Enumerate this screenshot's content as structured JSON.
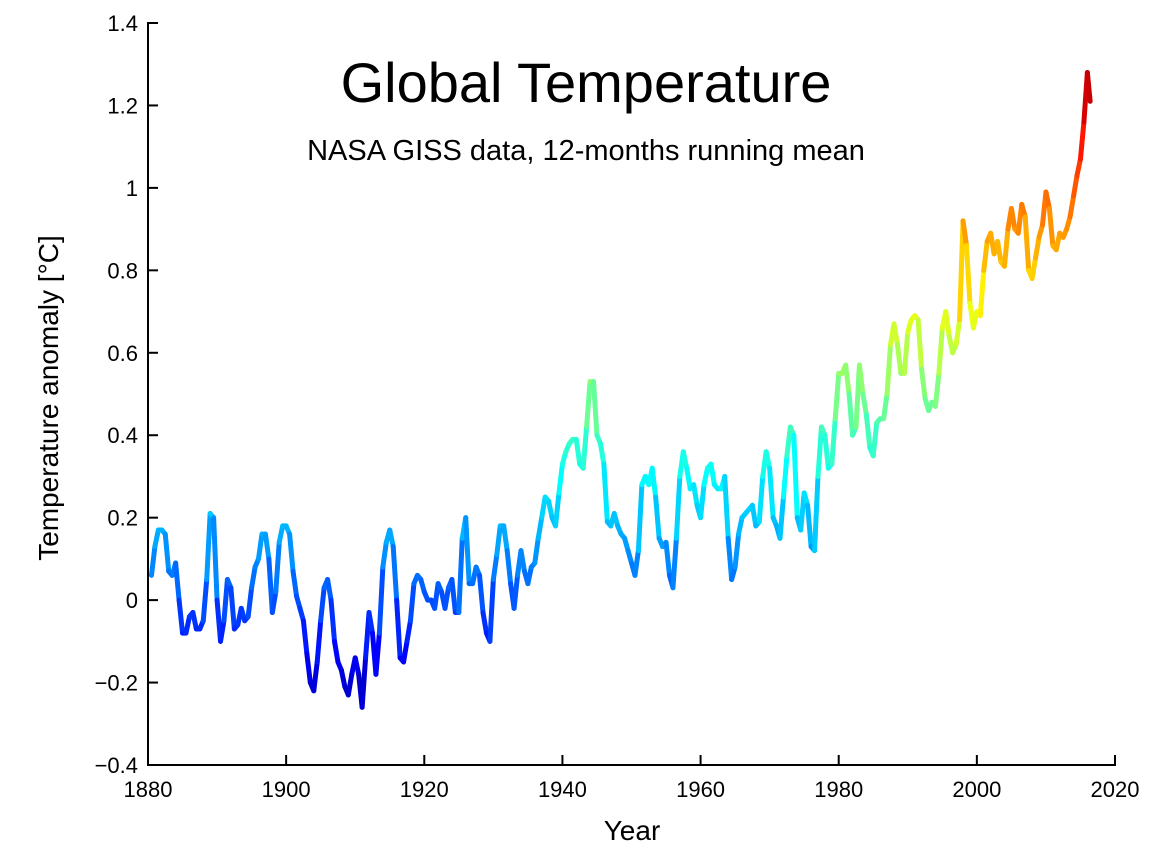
{
  "chart_data": {
    "type": "line",
    "title": "Global Temperature",
    "subtitle": "NASA GISS data, 12-months running mean",
    "xlabel": "Year",
    "ylabel": "Temperature anomaly [°C]",
    "xlim": [
      1880,
      2020
    ],
    "ylim": [
      -0.4,
      1.4
    ],
    "xticks": [
      1880,
      1900,
      1920,
      1940,
      1960,
      1980,
      2000,
      2020
    ],
    "xtick_labels": [
      "1880",
      "1900",
      "1920",
      "1940",
      "1960",
      "1980",
      "2000",
      "2020"
    ],
    "yticks": [
      1.4,
      1.2,
      1,
      0.8,
      0.6,
      0.4,
      0.2,
      0,
      -0.2,
      -0.4
    ],
    "ytick_labels": [
      "1.4",
      "1.2",
      "1",
      "0.8",
      "0.6",
      "0.4",
      "0.2",
      "0",
      "−0.2",
      "−0.4"
    ],
    "grid": false,
    "colormap": "jet (colored by anomaly value)",
    "series": [
      {
        "name": "12-month running mean anomaly",
        "x": [
          1880.5,
          1881,
          1881.5,
          1882,
          1882.5,
          1883,
          1883.5,
          1884,
          1884.5,
          1885,
          1885.5,
          1886,
          1886.5,
          1887,
          1887.5,
          1888,
          1888.5,
          1889,
          1889.5,
          1890,
          1890.5,
          1891,
          1891.5,
          1892,
          1892.5,
          1893,
          1893.5,
          1894,
          1894.5,
          1895,
          1895.5,
          1896,
          1896.5,
          1897,
          1897.5,
          1898,
          1898.5,
          1899,
          1899.5,
          1900,
          1900.5,
          1901,
          1901.5,
          1902,
          1902.5,
          1903,
          1903.5,
          1904,
          1904.5,
          1905,
          1905.5,
          1906,
          1906.5,
          1907,
          1907.5,
          1908,
          1908.5,
          1909,
          1909.5,
          1910,
          1910.5,
          1911,
          1911.5,
          1912,
          1912.5,
          1913,
          1913.5,
          1914,
          1914.5,
          1915,
          1915.5,
          1916,
          1916.5,
          1917,
          1917.5,
          1918,
          1918.5,
          1919,
          1919.5,
          1920,
          1920.5,
          1921,
          1921.5,
          1922,
          1922.5,
          1923,
          1923.5,
          1924,
          1924.5,
          1925,
          1925.5,
          1926,
          1926.5,
          1927,
          1927.5,
          1928,
          1928.5,
          1929,
          1929.5,
          1930,
          1930.5,
          1931,
          1931.5,
          1932,
          1932.5,
          1933,
          1933.5,
          1934,
          1934.5,
          1935,
          1935.5,
          1936,
          1936.5,
          1937,
          1937.5,
          1938,
          1938.5,
          1939,
          1939.5,
          1940,
          1940.5,
          1941,
          1941.5,
          1942,
          1942.5,
          1943,
          1943.5,
          1944,
          1944.5,
          1945,
          1945.5,
          1946,
          1946.5,
          1947,
          1947.5,
          1948,
          1948.5,
          1949,
          1949.5,
          1950,
          1950.5,
          1951,
          1951.5,
          1952,
          1952.5,
          1953,
          1953.5,
          1954,
          1954.5,
          1955,
          1955.5,
          1956,
          1956.5,
          1957,
          1957.5,
          1958,
          1958.5,
          1959,
          1959.5,
          1960,
          1960.5,
          1961,
          1961.5,
          1962,
          1962.5,
          1963,
          1963.5,
          1964,
          1964.5,
          1965,
          1965.5,
          1966,
          1966.5,
          1967,
          1967.5,
          1968,
          1968.5,
          1969,
          1969.5,
          1970,
          1970.5,
          1971,
          1971.5,
          1972,
          1972.5,
          1973,
          1973.5,
          1974,
          1974.5,
          1975,
          1975.5,
          1976,
          1976.5,
          1977,
          1977.5,
          1978,
          1978.5,
          1979,
          1979.5,
          1980,
          1980.5,
          1981,
          1981.5,
          1982,
          1982.5,
          1983,
          1983.5,
          1984,
          1984.5,
          1985,
          1985.5,
          1986,
          1986.5,
          1987,
          1987.5,
          1988,
          1988.5,
          1989,
          1989.5,
          1990,
          1990.5,
          1991,
          1991.5,
          1992,
          1992.5,
          1993,
          1993.5,
          1994,
          1994.5,
          1995,
          1995.5,
          1996,
          1996.5,
          1997,
          1997.5,
          1998,
          1998.5,
          1999,
          1999.5,
          2000,
          2000.5,
          2001,
          2001.5,
          2002,
          2002.5,
          2003,
          2003.5,
          2004,
          2004.5,
          2005,
          2005.5,
          2006,
          2006.5,
          2007,
          2007.5,
          2008,
          2008.5,
          2009,
          2009.5,
          2010,
          2010.5,
          2011,
          2011.5,
          2012,
          2012.5,
          2013,
          2013.5,
          2014,
          2014.5,
          2015,
          2015.5,
          2016,
          2016.4
        ],
        "y": [
          0.06,
          0.13,
          0.17,
          0.17,
          0.16,
          0.07,
          0.06,
          0.09,
          0.0,
          -0.08,
          -0.08,
          -0.04,
          -0.03,
          -0.07,
          -0.07,
          -0.05,
          0.05,
          0.21,
          0.2,
          0.0,
          -0.1,
          -0.05,
          0.05,
          0.03,
          -0.07,
          -0.06,
          -0.02,
          -0.05,
          -0.04,
          0.03,
          0.08,
          0.1,
          0.16,
          0.16,
          0.1,
          -0.03,
          0.02,
          0.14,
          0.18,
          0.18,
          0.16,
          0.07,
          0.01,
          -0.02,
          -0.05,
          -0.13,
          -0.2,
          -0.22,
          -0.15,
          -0.05,
          0.03,
          0.05,
          0.0,
          -0.1,
          -0.15,
          -0.17,
          -0.21,
          -0.23,
          -0.18,
          -0.14,
          -0.18,
          -0.26,
          -0.14,
          -0.03,
          -0.08,
          -0.18,
          -0.08,
          0.08,
          0.14,
          0.17,
          0.13,
          0.0,
          -0.14,
          -0.15,
          -0.1,
          -0.05,
          0.04,
          0.06,
          0.05,
          0.02,
          0.0,
          0.0,
          -0.02,
          0.04,
          0.02,
          -0.02,
          0.03,
          0.05,
          -0.03,
          -0.03,
          0.15,
          0.2,
          0.04,
          0.04,
          0.08,
          0.06,
          -0.03,
          -0.08,
          -0.1,
          0.05,
          0.11,
          0.18,
          0.18,
          0.12,
          0.04,
          -0.02,
          0.06,
          0.12,
          0.07,
          0.04,
          0.08,
          0.09,
          0.15,
          0.2,
          0.25,
          0.24,
          0.2,
          0.18,
          0.26,
          0.33,
          0.36,
          0.38,
          0.39,
          0.39,
          0.33,
          0.32,
          0.42,
          0.53,
          0.53,
          0.4,
          0.38,
          0.33,
          0.19,
          0.18,
          0.21,
          0.18,
          0.16,
          0.15,
          0.12,
          0.09,
          0.06,
          0.12,
          0.28,
          0.3,
          0.28,
          0.32,
          0.25,
          0.15,
          0.13,
          0.14,
          0.06,
          0.03,
          0.15,
          0.3,
          0.36,
          0.32,
          0.27,
          0.28,
          0.23,
          0.2,
          0.28,
          0.32,
          0.33,
          0.28,
          0.27,
          0.27,
          0.3,
          0.15,
          0.05,
          0.08,
          0.16,
          0.2,
          0.21,
          0.22,
          0.23,
          0.18,
          0.19,
          0.3,
          0.36,
          0.32,
          0.2,
          0.18,
          0.15,
          0.25,
          0.35,
          0.42,
          0.4,
          0.2,
          0.17,
          0.26,
          0.23,
          0.13,
          0.12,
          0.3,
          0.42,
          0.4,
          0.32,
          0.33,
          0.44,
          0.55,
          0.55,
          0.57,
          0.5,
          0.4,
          0.42,
          0.57,
          0.5,
          0.45,
          0.37,
          0.35,
          0.43,
          0.44,
          0.44,
          0.5,
          0.62,
          0.67,
          0.62,
          0.55,
          0.55,
          0.65,
          0.68,
          0.69,
          0.68,
          0.56,
          0.49,
          0.46,
          0.48,
          0.47,
          0.55,
          0.66,
          0.7,
          0.64,
          0.6,
          0.62,
          0.68,
          0.92,
          0.86,
          0.72,
          0.66,
          0.7,
          0.69,
          0.8,
          0.87,
          0.89,
          0.84,
          0.87,
          0.82,
          0.81,
          0.9,
          0.95,
          0.9,
          0.89,
          0.96,
          0.93,
          0.8,
          0.78,
          0.83,
          0.88,
          0.91,
          0.99,
          0.95,
          0.86,
          0.85,
          0.89,
          0.88,
          0.9,
          0.93,
          0.98,
          1.03,
          1.07,
          1.16,
          1.28,
          1.21
        ]
      }
    ]
  }
}
